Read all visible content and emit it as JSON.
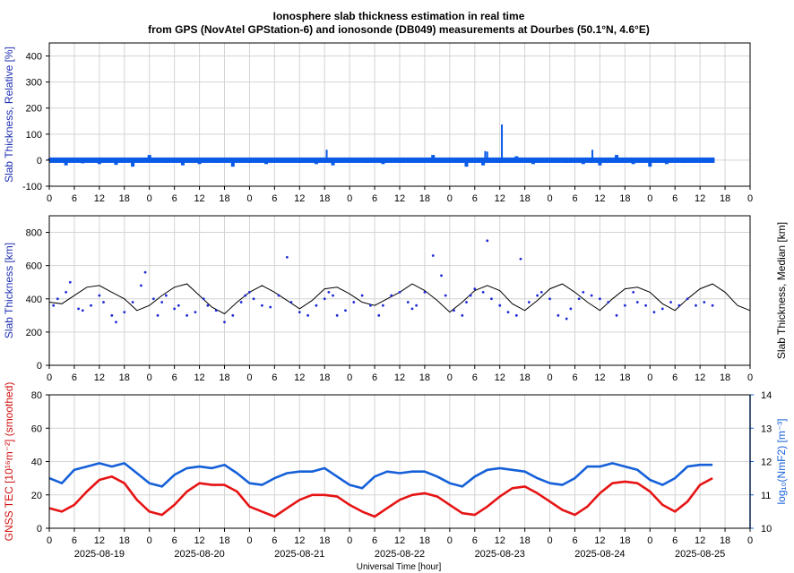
{
  "title_line1": "Ionosphere slab thickness estimation in real time",
  "title_line2": "from GPS (NovAtel GPStation-6) and ionosonde (DB049) measurements at Dourbes (50.1°N, 4.6°E)",
  "x_axis": {
    "label": "Universal Time [hour]",
    "hour_ticks": [
      "0",
      "6",
      "12",
      "18",
      "0",
      "6",
      "12",
      "18",
      "0",
      "6",
      "12",
      "18",
      "0",
      "6",
      "12",
      "18",
      "0",
      "6",
      "12",
      "18",
      "0",
      "6",
      "12",
      "18",
      "0",
      "6",
      "12",
      "18",
      "0"
    ],
    "dates": [
      "2025-08-19",
      "2025-08-20",
      "2025-08-21",
      "2025-08-22",
      "2025-08-23",
      "2025-08-24",
      "2025-08-25"
    ]
  },
  "colors": {
    "relative": "#0a5ae8",
    "slab_points": "#1f2ad8",
    "median": "#000000",
    "tec": "#e61414",
    "nmf2": "#1560d8",
    "relative_label": "#2030b0",
    "slab_label": "#2030b0",
    "median_label": "#000000",
    "tec_label": "#d01010",
    "nmf2_label": "#1560d8"
  },
  "chart_data": [
    {
      "type": "area",
      "ylabel": "Slab Thickness, Relative [%]",
      "ylim": [
        -100,
        450
      ],
      "yticks": [
        -100,
        0,
        100,
        200,
        300,
        400
      ],
      "xlim_hours": [
        0,
        168
      ],
      "grid": true,
      "series": [
        {
          "x_hours": [
            0,
            4,
            8,
            12,
            16,
            20,
            24,
            28,
            32,
            36,
            40,
            44,
            48,
            52,
            56,
            60,
            64,
            68,
            72,
            76,
            80,
            84,
            88,
            92,
            96,
            100,
            104,
            108,
            112,
            116,
            120,
            124,
            128,
            132,
            136,
            140,
            144,
            148,
            152,
            156,
            160,
            164,
            168
          ],
          "values": [
            5,
            -20,
            -12,
            -15,
            -18,
            -25,
            20,
            -10,
            -20,
            -15,
            -10,
            -25,
            -10,
            -15,
            10,
            -10,
            -15,
            -20,
            -5,
            -10,
            -15,
            -10,
            5,
            20,
            -5,
            -25,
            -20,
            -10,
            15,
            -15,
            -5,
            -10,
            -15,
            -20,
            20,
            -15,
            -25,
            -15,
            -10,
            5,
            -20,
            -15,
            -10
          ],
          "spikes_x_hours": [
            66.5,
            105,
            108.5,
            104.5,
            130.2
          ],
          "spikes_values": [
            40,
            33,
            137,
            35,
            40
          ],
          "x_end_hours": [
            159.5
          ]
        }
      ]
    },
    {
      "type": "scatter",
      "ylabel": "Slab Thickness [km]",
      "ylabel_right": "Slab Thickness, Median [km]",
      "ylim": [
        0,
        900
      ],
      "yticks": [
        0,
        200,
        400,
        600,
        800
      ],
      "xlim_hours": [
        0,
        168
      ],
      "grid": true,
      "series": [
        {
          "name": "Slab Thickness, Median [km]",
          "type": "line",
          "x_hours": [
            0,
            3,
            6,
            9,
            12,
            15,
            18,
            21,
            24,
            27,
            30,
            33,
            36,
            39,
            42,
            45,
            48,
            51,
            54,
            57,
            60,
            63,
            66,
            69,
            72,
            75,
            78,
            81,
            84,
            87,
            90,
            93,
            96,
            99,
            102,
            105,
            108,
            111,
            114,
            117,
            120,
            123,
            126,
            129,
            132,
            135,
            138,
            141,
            144,
            147,
            150,
            153,
            156,
            159,
            162,
            165,
            168
          ],
          "values": [
            380,
            370,
            420,
            470,
            480,
            440,
            400,
            330,
            360,
            420,
            470,
            490,
            420,
            350,
            310,
            380,
            440,
            480,
            440,
            390,
            340,
            390,
            460,
            470,
            430,
            380,
            360,
            400,
            440,
            490,
            450,
            390,
            320,
            380,
            450,
            480,
            450,
            370,
            330,
            390,
            460,
            490,
            440,
            380,
            330,
            400,
            460,
            470,
            440,
            370,
            330,
            400,
            460,
            490,
            440,
            360,
            330
          ]
        },
        {
          "name": "Slab Thickness [km]",
          "type": "scatter",
          "x_hours": [
            1,
            2,
            4,
            5,
            7,
            8,
            10,
            12,
            13,
            15,
            16,
            18,
            20,
            22,
            23,
            25,
            26,
            27,
            28,
            30,
            31,
            33,
            35,
            37,
            38,
            40,
            42,
            44,
            46,
            47,
            48,
            49,
            51,
            53,
            55,
            57,
            58,
            60,
            62,
            64,
            66,
            67,
            68,
            69,
            71,
            73,
            75,
            77,
            79,
            80,
            82,
            84,
            86,
            87,
            88,
            90,
            92,
            94,
            95,
            97,
            99,
            100,
            101,
            102,
            104,
            105,
            106,
            108,
            110,
            112,
            113,
            115,
            117,
            118,
            120,
            122,
            124,
            125,
            127,
            128,
            130,
            132,
            134,
            136,
            138,
            140,
            141,
            143,
            145,
            147,
            149,
            151,
            153,
            155,
            157,
            159
          ],
          "values": [
            360,
            400,
            440,
            500,
            340,
            330,
            360,
            420,
            380,
            300,
            260,
            320,
            380,
            480,
            560,
            400,
            300,
            380,
            420,
            340,
            360,
            300,
            320,
            400,
            360,
            330,
            260,
            300,
            380,
            420,
            440,
            400,
            360,
            350,
            420,
            650,
            380,
            320,
            300,
            360,
            400,
            440,
            420,
            300,
            330,
            380,
            420,
            360,
            300,
            360,
            420,
            440,
            380,
            340,
            360,
            440,
            660,
            540,
            420,
            330,
            300,
            380,
            420,
            460,
            440,
            750,
            400,
            360,
            320,
            300,
            640,
            380,
            420,
            440,
            400,
            300,
            280,
            340,
            400,
            440,
            420,
            400,
            380,
            300,
            360,
            440,
            380,
            360,
            320,
            340,
            380,
            360,
            400,
            360,
            380,
            360
          ]
        }
      ]
    },
    {
      "type": "line",
      "ylabel": "GNSS TEC [10¹⁶m⁻²] (smoothed)",
      "ylabel_right": "log₁₀(NmF2) [m⁻³]",
      "ylim": [
        0,
        80
      ],
      "yticks": [
        0,
        20,
        40,
        60,
        80
      ],
      "ylim_right": [
        10,
        14
      ],
      "yticks_right": [
        10,
        11,
        12,
        13,
        14
      ],
      "xlim_hours": [
        0,
        168
      ],
      "grid": true,
      "series": [
        {
          "name": "GNSS TEC [10¹⁶m⁻²] (smoothed)",
          "axis": "left",
          "x_hours": [
            0,
            3,
            6,
            9,
            12,
            15,
            18,
            21,
            24,
            27,
            30,
            33,
            36,
            39,
            42,
            45,
            48,
            51,
            54,
            57,
            60,
            63,
            66,
            69,
            72,
            75,
            78,
            81,
            84,
            87,
            90,
            93,
            96,
            99,
            102,
            105,
            108,
            111,
            114,
            117,
            120,
            123,
            126,
            129,
            132,
            135,
            138,
            141,
            144,
            147,
            150,
            153,
            156,
            159
          ],
          "values": [
            12,
            10,
            14,
            22,
            29,
            31,
            27,
            17,
            10,
            8,
            14,
            22,
            27,
            26,
            26,
            22,
            13,
            10,
            7,
            12,
            17,
            20,
            20,
            19,
            14,
            10,
            7,
            12,
            17,
            20,
            21,
            19,
            14,
            9,
            8,
            13,
            19,
            24,
            25,
            21,
            16,
            11,
            8,
            13,
            21,
            27,
            28,
            27,
            22,
            14,
            10,
            16,
            26,
            30
          ]
        },
        {
          "name": "log₁₀(NmF2) [m⁻³]",
          "axis": "right",
          "x_hours": [
            0,
            3,
            6,
            9,
            12,
            15,
            18,
            21,
            24,
            27,
            30,
            33,
            36,
            39,
            42,
            45,
            48,
            51,
            54,
            57,
            60,
            63,
            66,
            69,
            72,
            75,
            78,
            81,
            84,
            87,
            90,
            93,
            96,
            99,
            102,
            105,
            108,
            111,
            114,
            117,
            120,
            123,
            126,
            129,
            132,
            135,
            138,
            141,
            144,
            147,
            150,
            153,
            156,
            159
          ],
          "values": [
            11.5,
            11.35,
            11.75,
            11.85,
            11.95,
            11.85,
            11.95,
            11.65,
            11.35,
            11.25,
            11.6,
            11.8,
            11.85,
            11.8,
            11.9,
            11.65,
            11.35,
            11.3,
            11.5,
            11.65,
            11.7,
            11.7,
            11.8,
            11.55,
            11.3,
            11.2,
            11.55,
            11.7,
            11.65,
            11.7,
            11.7,
            11.55,
            11.35,
            11.25,
            11.55,
            11.75,
            11.8,
            11.75,
            11.7,
            11.5,
            11.35,
            11.3,
            11.5,
            11.85,
            11.85,
            11.95,
            11.85,
            11.75,
            11.45,
            11.3,
            11.5,
            11.85,
            11.9,
            11.9
          ]
        }
      ]
    }
  ]
}
